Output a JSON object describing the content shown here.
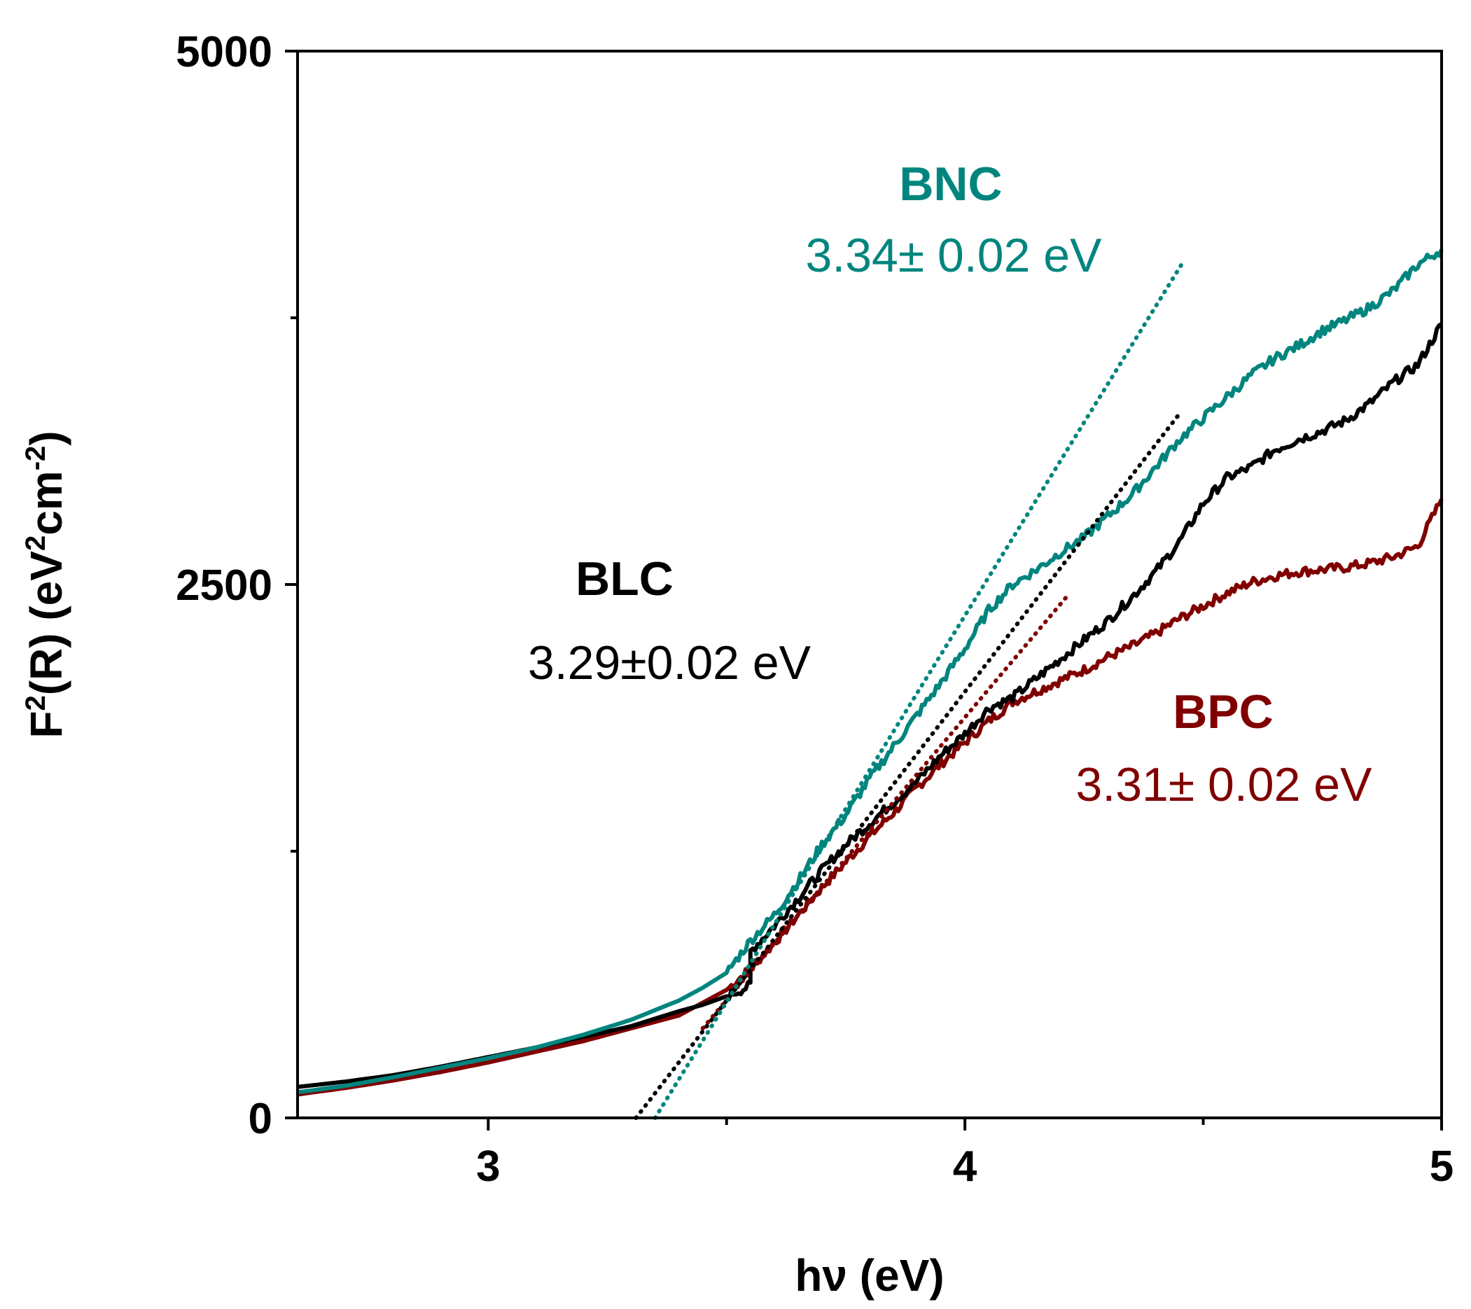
{
  "chart_data": {
    "type": "line",
    "title": "",
    "xlabel": "hν (eV)",
    "ylabel_parts": {
      "pre": "F",
      "sup1": "2",
      "mid": "(R) (eV",
      "sup2": "2",
      "mid2": "cm",
      "sup3": "-2",
      "post": ")"
    },
    "xlim": [
      2.6,
      5.0
    ],
    "ylim": [
      0,
      5000
    ],
    "xticks_major": [
      3,
      4,
      5
    ],
    "xtick_labels": [
      "3",
      "4",
      "5"
    ],
    "xticks_minor": [
      3.5,
      4.5
    ],
    "yticks_major": [
      0,
      2500,
      5000
    ],
    "ytick_labels": [
      "0",
      "2500",
      "5000"
    ],
    "yticks_minor": [
      1250,
      3750
    ],
    "series": [
      {
        "name": "BLC",
        "gap_label": "3.29±0.02 eV",
        "color": "#000000",
        "x": [
          2.6,
          2.7,
          2.8,
          2.9,
          3.0,
          3.1,
          3.2,
          3.3,
          3.4,
          3.45,
          3.5,
          3.55,
          3.55,
          3.6,
          3.65,
          3.7,
          3.75,
          3.8,
          3.85,
          3.9,
          3.95,
          4.0,
          4.05,
          4.1,
          4.15,
          4.2,
          4.25,
          4.3,
          4.35,
          4.4,
          4.45,
          4.5,
          4.55,
          4.6,
          4.65,
          4.7,
          4.75,
          4.8,
          4.85,
          4.9,
          4.95,
          5.0
        ],
        "y": [
          145,
          170,
          200,
          240,
          285,
          330,
          380,
          430,
          500,
          530,
          570,
          620,
          780,
          900,
          1030,
          1160,
          1280,
          1380,
          1480,
          1580,
          1700,
          1800,
          1920,
          1970,
          2060,
          2150,
          2240,
          2330,
          2440,
          2560,
          2700,
          2880,
          3000,
          3050,
          3130,
          3180,
          3220,
          3270,
          3350,
          3450,
          3530,
          3720
        ],
        "fit": {
          "x": [
            3.31,
            4.45
          ],
          "y": [
            0,
            3300
          ]
        }
      },
      {
        "name": "BPC",
        "gap_label": "3.31± 0.02 eV",
        "color": "#800000",
        "x": [
          2.6,
          2.7,
          2.8,
          2.9,
          3.0,
          3.1,
          3.2,
          3.3,
          3.4,
          3.45,
          3.5,
          3.55,
          3.6,
          3.65,
          3.7,
          3.75,
          3.8,
          3.85,
          3.9,
          3.95,
          4.0,
          4.05,
          4.1,
          4.15,
          4.2,
          4.25,
          4.3,
          4.35,
          4.4,
          4.45,
          4.5,
          4.55,
          4.6,
          4.65,
          4.7,
          4.75,
          4.8,
          4.85,
          4.9,
          4.95,
          5.0
        ],
        "y": [
          110,
          140,
          175,
          215,
          260,
          310,
          360,
          420,
          480,
          540,
          600,
          700,
          820,
          950,
          1080,
          1200,
          1320,
          1430,
          1550,
          1660,
          1760,
          1860,
          1950,
          2000,
          2050,
          2100,
          2160,
          2210,
          2270,
          2340,
          2400,
          2460,
          2510,
          2540,
          2560,
          2570,
          2580,
          2600,
          2630,
          2680,
          2900
        ],
        "fit": {
          "x": [
            3.45,
            4.22
          ],
          "y": [
            420,
            2460
          ]
        }
      },
      {
        "name": "BNC",
        "gap_label": "3.34± 0.02 eV",
        "color": "#00857e",
        "x": [
          2.6,
          2.7,
          2.8,
          2.9,
          3.0,
          3.1,
          3.2,
          3.3,
          3.4,
          3.45,
          3.5,
          3.55,
          3.6,
          3.65,
          3.7,
          3.75,
          3.8,
          3.85,
          3.9,
          3.95,
          4.0,
          4.05,
          4.1,
          4.15,
          4.2,
          4.25,
          4.3,
          4.35,
          4.4,
          4.45,
          4.5,
          4.55,
          4.6,
          4.65,
          4.7,
          4.75,
          4.8,
          4.85,
          4.9,
          4.95,
          5.0
        ],
        "y": [
          120,
          150,
          190,
          235,
          280,
          330,
          390,
          460,
          550,
          610,
          680,
          830,
          950,
          1110,
          1280,
          1420,
          1590,
          1740,
          1890,
          2040,
          2200,
          2380,
          2500,
          2570,
          2650,
          2720,
          2820,
          2920,
          3050,
          3180,
          3280,
          3380,
          3480,
          3560,
          3620,
          3690,
          3740,
          3800,
          3880,
          4000,
          4070
        ],
        "fit": {
          "x": [
            3.35,
            4.46
          ],
          "y": [
            0,
            4020
          ]
        }
      }
    ]
  }
}
